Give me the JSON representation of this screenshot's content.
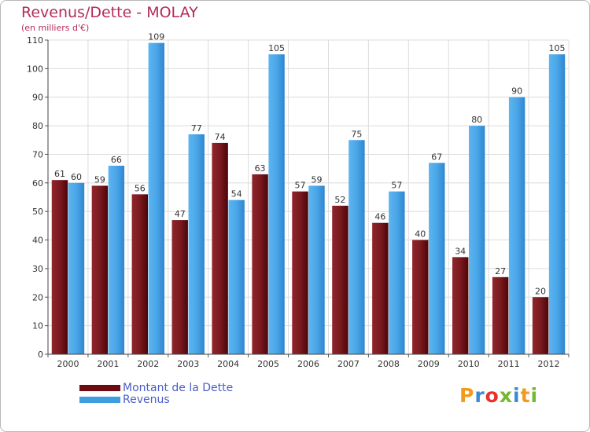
{
  "title": "Revenus/Dette - MOLAY",
  "subtitle": "(en milliers d'€)",
  "colors": {
    "dette": "#6e0a10",
    "revenus": "#3f9de0",
    "title": "#b42c58",
    "legend_text": "#4a5ec8"
  },
  "legend": {
    "dette": "Montant de la Dette",
    "revenus": "Revenus"
  },
  "logo": {
    "text": "Proxiti",
    "letters": [
      "P",
      "r",
      "o",
      "x",
      "i",
      "t",
      "i"
    ],
    "colors": [
      "#f29a1e",
      "#3a8ad6",
      "#e8312a",
      "#74b82e",
      "#3a8ad6",
      "#f29a1e",
      "#74b82e"
    ]
  },
  "chart_data": {
    "type": "bar",
    "categories": [
      "2000",
      "2001",
      "2002",
      "2003",
      "2004",
      "2005",
      "2006",
      "2007",
      "2008",
      "2009",
      "2010",
      "2011",
      "2012"
    ],
    "series": [
      {
        "name": "Montant de la Dette",
        "values": [
          61,
          59,
          56,
          47,
          74,
          63,
          57,
          52,
          46,
          40,
          34,
          27,
          20
        ]
      },
      {
        "name": "Revenus",
        "values": [
          60,
          66,
          109,
          77,
          54,
          105,
          59,
          75,
          57,
          67,
          80,
          90,
          105
        ]
      }
    ],
    "ylim": [
      0,
      110
    ],
    "yticks": [
      0,
      10,
      20,
      30,
      40,
      50,
      60,
      70,
      80,
      90,
      100,
      110
    ],
    "grid": true,
    "legend_position": "bottom-left"
  }
}
